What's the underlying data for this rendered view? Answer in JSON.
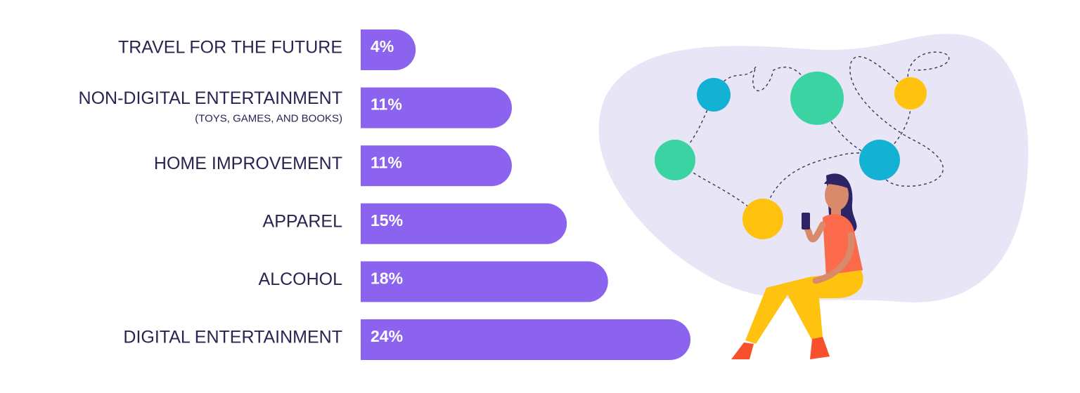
{
  "chart_data": {
    "type": "bar",
    "orientation": "horizontal",
    "categories": [
      "TRAVEL FOR THE FUTURE",
      "NON-DIGITAL ENTERTAINMENT",
      "HOME IMPROVEMENT",
      "APPAREL",
      "ALCOHOL",
      "DIGITAL ENTERTAINMENT"
    ],
    "category_sublabels": [
      null,
      "(TOYS, GAMES, AND BOOKS)",
      null,
      null,
      null,
      null
    ],
    "values": [
      4,
      11,
      11,
      15,
      18,
      24
    ],
    "value_labels": [
      "4%",
      "11%",
      "11%",
      "15%",
      "18%",
      "24%"
    ],
    "color": "#8b63ee"
  }
}
